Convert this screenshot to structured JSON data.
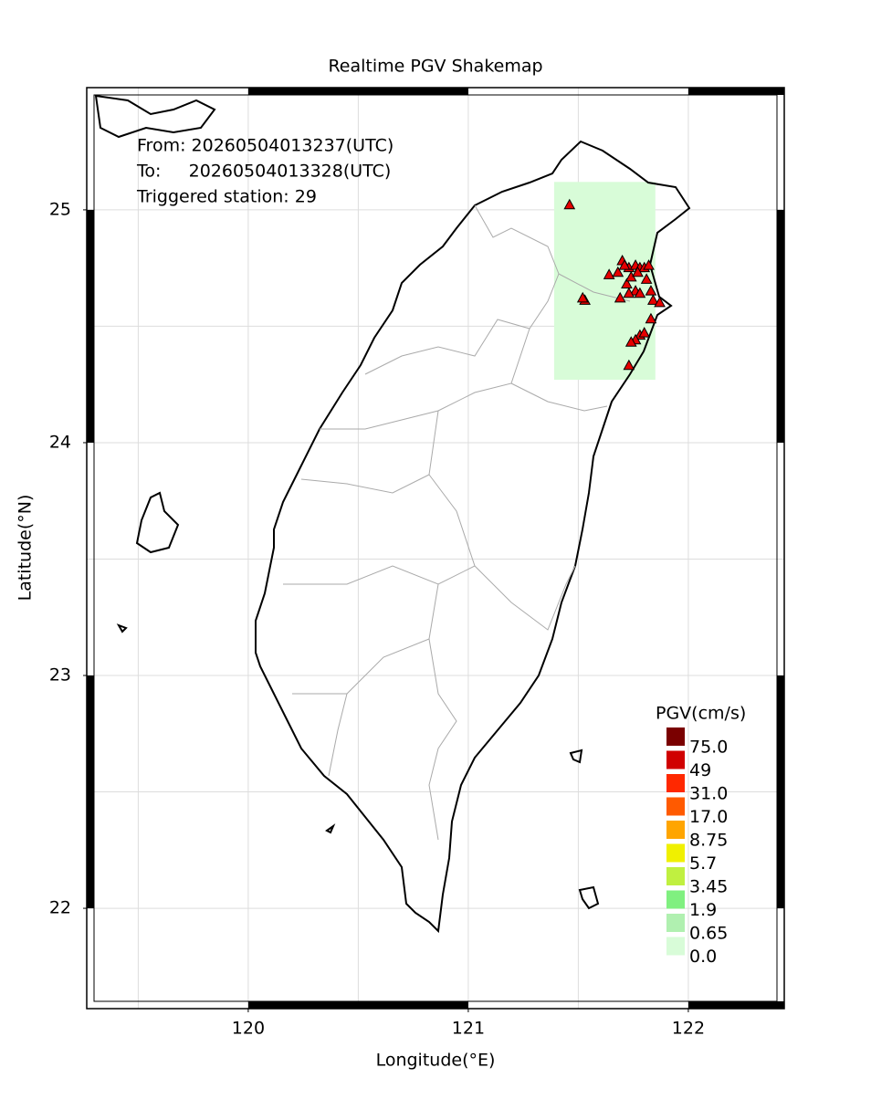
{
  "chart_data": {
    "type": "map",
    "title": "Realtime PGV Shakemap",
    "info": [
      "From: 20260504013237(UTC)",
      "To:     20260504013328(UTC)",
      "Triggered station: 29"
    ],
    "xlabel": "Longitude(°E)",
    "ylabel": "Latitude(°N)",
    "xlim": [
      119.266,
      122.436
    ],
    "ylim": [
      21.569,
      25.525
    ],
    "xticks": [
      120,
      121,
      122
    ],
    "yticks": [
      22,
      23,
      24,
      25
    ],
    "xgrid": [
      119.5,
      120,
      120.5,
      121,
      121.5,
      122
    ],
    "ygrid": [
      22,
      22.5,
      23,
      23.5,
      24,
      24.5,
      25
    ],
    "pgv_field": {
      "lon": [
        121.39,
        121.85
      ],
      "lat": [
        24.27,
        25.12
      ]
    },
    "station_color": "#e60000",
    "stations": {
      "lon": [
        121.46,
        121.53,
        121.52,
        121.64,
        121.68,
        121.7,
        121.73,
        121.76,
        121.78,
        121.8,
        121.82,
        121.72,
        121.74,
        121.77,
        121.81,
        121.83,
        121.76,
        121.78,
        121.73,
        121.69,
        121.84,
        121.87,
        121.83,
        121.78,
        121.8,
        121.76,
        121.74,
        121.73,
        121.71
      ],
      "lat": [
        25.02,
        24.61,
        24.62,
        24.72,
        24.73,
        24.78,
        24.75,
        24.76,
        24.75,
        24.75,
        24.76,
        24.68,
        24.71,
        24.73,
        24.7,
        24.65,
        24.65,
        24.64,
        24.64,
        24.62,
        24.61,
        24.6,
        24.53,
        24.46,
        24.47,
        24.44,
        24.43,
        24.33,
        24.76
      ]
    },
    "legend": {
      "title": "PGV(cm/s)",
      "levels": [
        {
          "value": 75,
          "label": "75.0"
        },
        49,
        {
          "value": 31,
          "label": "31.0"
        },
        {
          "value": 17,
          "label": "17.0"
        },
        8.75,
        5.7,
        3.45,
        1.9,
        0.65,
        {
          "value": 0,
          "label": "0.0"
        }
      ],
      "colors": [
        "#7a0000",
        "#d00000",
        "#ff2800",
        "#ff5a00",
        "#ffa500",
        "#f0f000",
        "#c0f040",
        "#80f080",
        "#b0f0b0",
        "#d8fcd8"
      ]
    }
  }
}
